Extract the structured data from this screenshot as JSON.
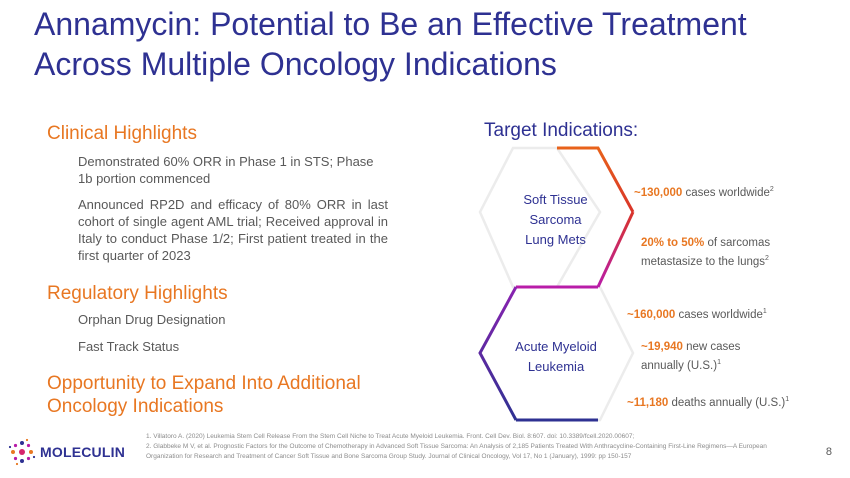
{
  "title": "Annamycin: Potential to Be an Effective Treatment Across Multiple Oncology Indications",
  "clinical": {
    "heading": "Clinical Highlights",
    "items": [
      "Demonstrated 60% ORR in Phase 1 in STS; Phase 1b portion commenced",
      "Announced RP2D and efficacy of 80% ORR in last cohort of single agent AML trial; Received approval in Italy to conduct Phase 1/2; First patient treated in the first quarter of 2023"
    ]
  },
  "regulatory": {
    "heading": "Regulatory Highlights",
    "items": [
      "Orphan Drug Designation",
      "Fast Track Status"
    ]
  },
  "opportunity": {
    "heading": "Opportunity to Expand Into Additional Oncology Indications"
  },
  "target": {
    "heading": "Target Indications:",
    "sts": {
      "label_lines": [
        "Soft Tissue",
        "Sarcoma",
        "Lung Mets"
      ],
      "stat1_value": "~130,000",
      "stat1_text": " cases worldwide",
      "stat1_sup": "2",
      "stat2_value": "20% to 50%",
      "stat2_text1": " of sarcomas",
      "stat2_text2": "metastasize to the lungs",
      "stat2_sup": "2"
    },
    "aml": {
      "label_lines": [
        "Acute Myeloid",
        "Leukemia"
      ],
      "stat1_value": "~160,000",
      "stat1_text": " cases worldwide",
      "stat1_sup": "1",
      "stat2_value": "~19,940",
      "stat2_text1": " new cases",
      "stat2_text2": "annually (U.S.)",
      "stat2_sup": "1",
      "stat3_value": "~11,180",
      "stat3_text": " deaths annually (U.S.)",
      "stat3_sup": "1"
    }
  },
  "footnotes": [
    "1. Villatoro A. (2020) Leukemia Stem Cell Release From the Stem Cell Niche to Treat Acute Myeloid Leukemia. Front. Cell Dev. Biol. 8:607. doi: 10.3389/fcell.2020.00607;",
    "2. Glabbeke M V, et al. Prognostic Factors for the Outcome of Chemotherapy in Advanced Soft Tissue Sarcoma: An Analysis of 2,185 Patients Treated With Anthracycline-Containing First-Line Regimens—A European Organization for Research and Treatment of Cancer Soft Tissue and Bone Sarcoma Group Study. Journal of Clinical Oncology, Vol 17, No 1 (January), 1999: pp 150-157"
  ],
  "logo": {
    "text": "MOLECULIN",
    "icon": "molecule-dots-icon"
  },
  "page_number": "8",
  "colors": {
    "title": "#2e3192",
    "accent": "#e87722",
    "hex_blue": "#2e3192",
    "hex_magenta": "#b81ca8",
    "hex_orange": "#e8621a"
  }
}
